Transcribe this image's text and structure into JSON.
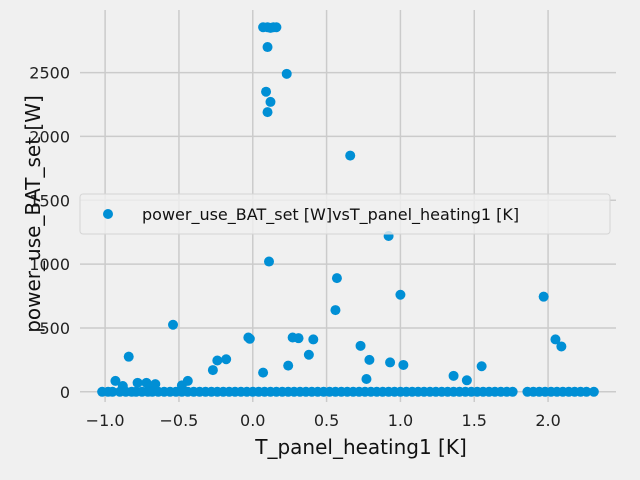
{
  "chart_data": {
    "type": "scatter",
    "xlabel": "T_panel_heating1 [K]",
    "ylabel": "power_use_BAT_set [W]",
    "xlim": [
      -1.17,
      2.46
    ],
    "ylim": [
      -80,
      2990
    ],
    "xticks": [
      -1.0,
      -0.5,
      0.0,
      0.5,
      1.0,
      1.5,
      2.0
    ],
    "xtick_labels": [
      "−1.0",
      "−0.5",
      "0.0",
      "0.5",
      "1.0",
      "1.5",
      "2.0"
    ],
    "yticks": [
      0,
      500,
      1000,
      1500,
      2000,
      2500
    ],
    "ytick_labels": [
      "0",
      "500",
      "1000",
      "1500",
      "2000",
      "2500"
    ],
    "grid": true,
    "legend_position": "center-right",
    "marker_color": "#008fd5",
    "series": [
      {
        "name": "power_use_BAT_set [W]vsT_panel_heating1 [K]",
        "x": [
          0.07,
          0.1,
          0.12,
          0.14,
          0.16,
          0.1,
          0.23,
          0.09,
          0.12,
          0.1,
          0.66,
          0.92,
          0.11,
          0.57,
          0.56,
          1.0,
          1.97,
          -0.54,
          2.05,
          2.09,
          -0.03,
          -0.02,
          0.27,
          0.31,
          0.41,
          0.73,
          -0.24,
          -0.18,
          0.38,
          0.93,
          0.79,
          -0.84,
          1.02,
          0.24,
          -0.27,
          0.07,
          1.55,
          1.36,
          0.77,
          1.45,
          -0.44,
          -0.93,
          -0.78,
          -0.72,
          -0.66,
          -0.48,
          -0.88,
          -0.7,
          -1.02,
          -0.98,
          -0.95,
          -0.9,
          -0.86,
          -0.82,
          -0.79,
          -0.75,
          -0.71,
          -0.68,
          -0.64,
          -0.6,
          -0.56,
          -0.52,
          -0.48,
          -0.44,
          -0.4,
          -0.36,
          -0.32,
          -0.28,
          -0.24,
          -0.2,
          -0.16,
          -0.12,
          -0.08,
          -0.04,
          0.0,
          0.04,
          0.08,
          0.12,
          0.16,
          0.2,
          0.24,
          0.28,
          0.32,
          0.36,
          0.4,
          0.44,
          0.48,
          0.52,
          0.56,
          0.6,
          0.64,
          0.68,
          0.72,
          0.76,
          0.8,
          0.84,
          0.88,
          0.92,
          0.96,
          1.0,
          1.04,
          1.08,
          1.12,
          1.16,
          1.2,
          1.24,
          1.28,
          1.32,
          1.36,
          1.4,
          1.44,
          1.48,
          1.52,
          1.56,
          1.6,
          1.64,
          1.68,
          1.72,
          1.76,
          1.86,
          1.9,
          1.94,
          1.98,
          2.02,
          2.06,
          2.1,
          2.14,
          2.18,
          2.22,
          2.26,
          2.31
        ],
        "y": [
          2855,
          2855,
          2850,
          2855,
          2855,
          2700,
          2490,
          2350,
          2270,
          2190,
          1850,
          1220,
          1020,
          890,
          640,
          760,
          745,
          525,
          410,
          355,
          425,
          415,
          425,
          420,
          410,
          360,
          245,
          255,
          290,
          230,
          250,
          275,
          210,
          205,
          170,
          150,
          200,
          125,
          100,
          90,
          85,
          85,
          70,
          70,
          60,
          50,
          45,
          40,
          0,
          0,
          0,
          0,
          0,
          0,
          0,
          0,
          0,
          0,
          0,
          0,
          0,
          0,
          0,
          0,
          0,
          0,
          0,
          0,
          0,
          0,
          0,
          0,
          0,
          0,
          0,
          0,
          0,
          0,
          0,
          0,
          0,
          0,
          0,
          0,
          0,
          0,
          0,
          0,
          0,
          0,
          0,
          0,
          0,
          0,
          0,
          0,
          0,
          0,
          0,
          0,
          0,
          0,
          0,
          0,
          0,
          0,
          0,
          0,
          0,
          0,
          0,
          0,
          0,
          0,
          0,
          0,
          0,
          0,
          0,
          0,
          0,
          0,
          0,
          0,
          0,
          0,
          0,
          0,
          0,
          0,
          0
        ]
      }
    ]
  }
}
